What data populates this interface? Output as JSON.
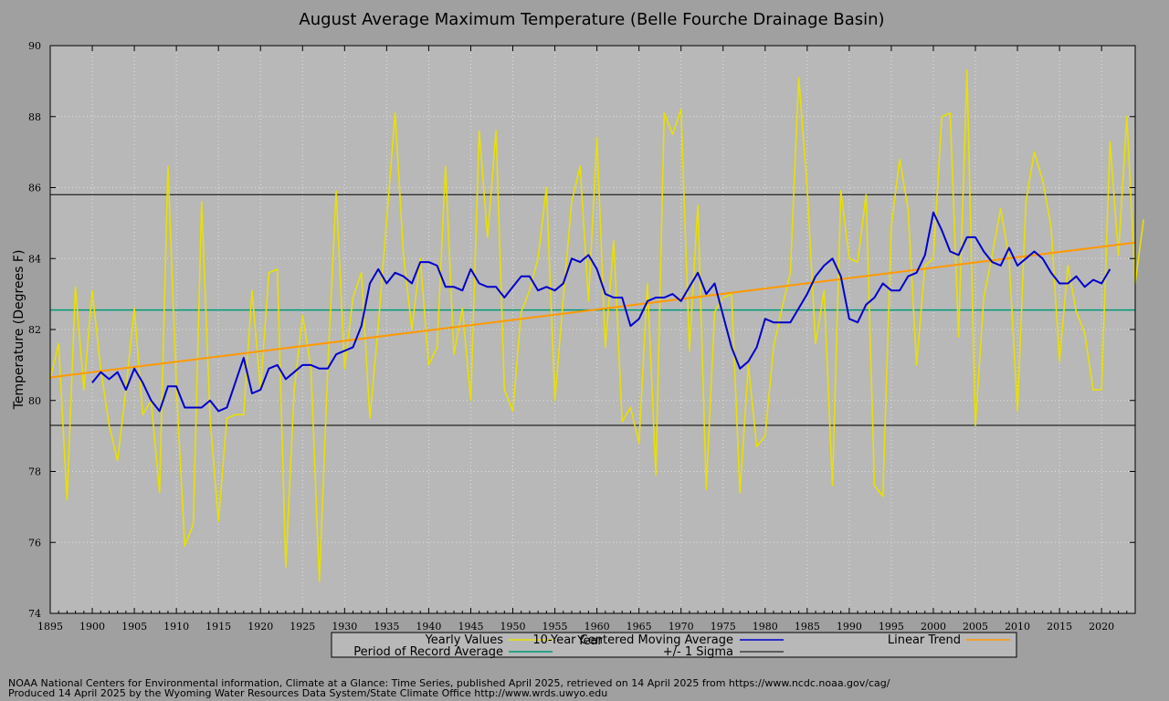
{
  "chart_data": {
    "type": "line",
    "title": "August Average Maximum Temperature (Belle Fourche Drainage Basin)",
    "xlabel": "Year",
    "ylabel": "Temperature (Degrees F)",
    "xlim": [
      1895,
      2024
    ],
    "ylim": [
      74,
      90
    ],
    "x_ticks": [
      1895,
      1900,
      1905,
      1910,
      1915,
      1920,
      1925,
      1930,
      1935,
      1940,
      1945,
      1950,
      1955,
      1960,
      1965,
      1970,
      1975,
      1980,
      1985,
      1990,
      1995,
      2000,
      2005,
      2010,
      2015,
      2020
    ],
    "y_ticks": [
      74,
      76,
      78,
      80,
      82,
      84,
      86,
      88,
      90
    ],
    "grid": true,
    "legend_position": "bottom",
    "colors": {
      "background": "#a0a0a0",
      "plot_area": "#b8b8b8",
      "yearly": "#e8e000",
      "moving_average": "#0000cc",
      "trend": "#ff9900",
      "average": "#009977",
      "sigma": "#000000"
    },
    "series": [
      {
        "name": "Yearly Values",
        "x_start": 1895,
        "values": [
          80.6,
          81.6,
          77.2,
          83.2,
          80.3,
          83.1,
          80.9,
          79.3,
          78.3,
          80.3,
          82.6,
          79.6,
          80.0,
          77.4,
          86.6,
          80.4,
          75.9,
          76.5,
          85.6,
          79.5,
          76.6,
          79.5,
          79.6,
          79.6,
          83.1,
          80.3,
          83.6,
          83.7,
          75.3,
          80.3,
          82.4,
          80.9,
          74.9,
          80.9,
          85.9,
          80.9,
          82.9,
          83.6,
          79.5,
          82.1,
          85.1,
          88.1,
          84.1,
          82.0,
          84.0,
          81.0,
          81.5,
          86.6,
          81.3,
          82.6,
          80.0,
          87.6,
          84.6,
          87.6,
          80.3,
          79.7,
          82.5,
          83.1,
          84.0,
          86.0,
          80.0,
          82.9,
          85.6,
          86.6,
          82.8,
          87.4,
          81.5,
          84.5,
          79.4,
          79.8,
          78.8,
          83.3,
          77.9,
          88.1,
          87.5,
          88.2,
          81.4,
          85.5,
          77.5,
          82.5,
          82.9,
          83.0,
          77.4,
          81.0,
          78.7,
          79.0,
          81.5,
          82.6,
          83.6,
          89.1,
          86.0,
          81.6,
          83.1,
          77.6,
          85.9,
          84.0,
          83.9,
          85.8,
          77.6,
          77.3,
          84.9,
          86.8,
          85.4,
          81.0,
          83.8,
          84.0,
          88.0,
          88.1,
          81.8,
          89.3,
          79.3,
          82.9,
          84.1,
          85.4,
          84.0,
          79.7,
          85.6,
          87.0,
          86.2,
          84.9,
          81.1,
          83.8,
          82.5,
          81.9,
          80.3,
          80.3,
          87.3,
          84.1,
          88.0,
          83.3,
          85.1
        ]
      },
      {
        "name": "10-Year Centered Moving Average",
        "x_start": 1900,
        "values": [
          80.5,
          80.8,
          80.6,
          80.8,
          80.3,
          80.9,
          80.5,
          80.0,
          79.7,
          80.4,
          80.4,
          79.8,
          79.8,
          79.8,
          80.0,
          79.7,
          79.8,
          80.5,
          81.2,
          80.2,
          80.3,
          80.9,
          81.0,
          80.6,
          80.8,
          81.0,
          81.0,
          80.9,
          80.9,
          81.3,
          81.4,
          81.5,
          82.1,
          83.3,
          83.7,
          83.3,
          83.6,
          83.5,
          83.3,
          83.9,
          83.9,
          83.8,
          83.2,
          83.2,
          83.1,
          83.7,
          83.3,
          83.2,
          83.2,
          82.9,
          83.2,
          83.5,
          83.5,
          83.1,
          83.2,
          83.1,
          83.3,
          84.0,
          83.9,
          84.1,
          83.7,
          83.0,
          82.9,
          82.9,
          82.1,
          82.3,
          82.8,
          82.9,
          82.9,
          83.0,
          82.8,
          83.2,
          83.6,
          83.0,
          83.3,
          82.4,
          81.5,
          80.9,
          81.1,
          81.5,
          82.3,
          82.2,
          82.2,
          82.2,
          82.6,
          83.0,
          83.5,
          83.8,
          84.0,
          83.5,
          82.3,
          82.2,
          82.7,
          82.9,
          83.3,
          83.1,
          83.1,
          83.5,
          83.6,
          84.1,
          85.3,
          84.8,
          84.2,
          84.1,
          84.6,
          84.6,
          84.2,
          83.9,
          83.8,
          84.3,
          83.8,
          84.0,
          84.2,
          84.0,
          83.6,
          83.3,
          83.3,
          83.5,
          83.2,
          83.4,
          83.3,
          83.7
        ]
      },
      {
        "name": "Linear Trend",
        "x": [
          1895,
          2024
        ],
        "values": [
          80.65,
          84.45
        ]
      },
      {
        "name": "Period of Record Average",
        "x": [
          1895,
          2024
        ],
        "values": [
          82.55,
          82.55
        ]
      },
      {
        "name": "+/- 1 Sigma",
        "levels": [
          85.8,
          79.3
        ]
      }
    ]
  },
  "legend": {
    "yearly": "Yearly Values",
    "moving_average": "10-Year Centered Moving Average",
    "trend": "Linear Trend",
    "average": "Period of Record Average",
    "sigma": "+/- 1 Sigma"
  },
  "credits": [
    "NOAA National Centers for Environmental information, Climate at a Glance: Time Series, published April 2025, retrieved on 14 April 2025 from https://www.ncdc.noaa.gov/cag/",
    "Produced 14 April 2025 by the Wyoming Water Resources Data System/State Climate Office http://www.wrds.uwyo.edu"
  ]
}
